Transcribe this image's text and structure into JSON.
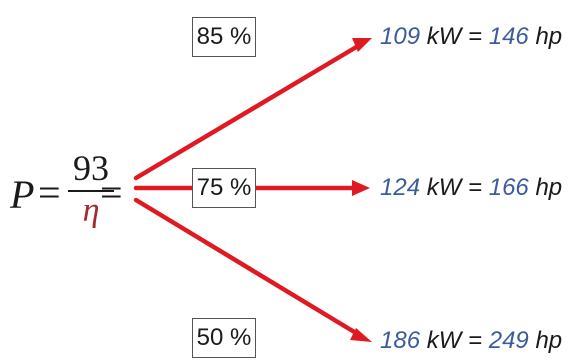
{
  "colors": {
    "arrow": "#e01a22",
    "numeric_value": "#3b5c9c",
    "eta": "#a52a2a",
    "text": "#1a1a1a"
  },
  "formula": {
    "lhs": "P",
    "equals_1": "=",
    "numerator": "93",
    "denominator": "η",
    "equals_2": "="
  },
  "efficiency_boxes": [
    {
      "label": "85 %"
    },
    {
      "label": "75 %"
    },
    {
      "label": "50 %"
    }
  ],
  "results": [
    {
      "kw_value": "109",
      "kw_unit": "kW",
      "equals": "=",
      "hp_value": "146",
      "hp_unit": "hp"
    },
    {
      "kw_value": "124",
      "kw_unit": "kW",
      "equals": "=",
      "hp_value": "166",
      "hp_unit": "hp"
    },
    {
      "kw_value": "186",
      "kw_unit": "kW",
      "equals": "=",
      "hp_value": "249",
      "hp_unit": "hp"
    }
  ]
}
